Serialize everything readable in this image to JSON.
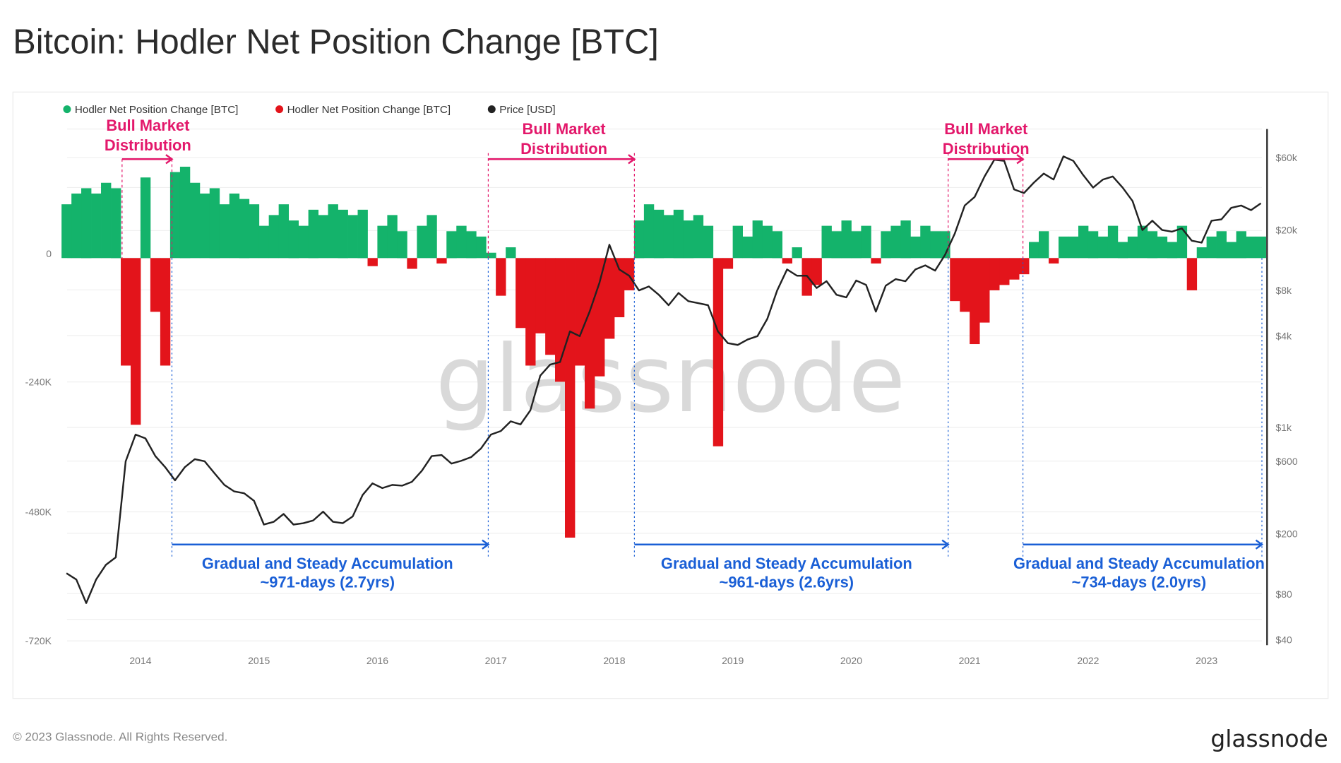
{
  "title": "Bitcoin: Hodler Net Position Change [BTC]",
  "footer": {
    "copyright": "© 2023 Glassnode. All Rights Reserved.",
    "logo": "glassnode"
  },
  "watermark": "glassnode",
  "colors": {
    "positive": "#14b36b",
    "negative": "#e3141b",
    "price": "#222222",
    "distribution": "#e3186b",
    "accumulation": "#1a5fd6"
  },
  "annotations": {
    "distribution": [
      {
        "line1": "Bull Market",
        "line2": "Distribution"
      },
      {
        "line1": "Bull Market",
        "line2": "Distribution"
      },
      {
        "line1": "Bull Market",
        "line2": "Distribution"
      }
    ],
    "accumulation": [
      {
        "line1": "Gradual and Steady Accumulation",
        "line2": "~971-days (2.7yrs)"
      },
      {
        "line1": "Gradual and Steady Accumulation",
        "line2": "~961-days (2.6yrs)"
      },
      {
        "line1": "Gradual and Steady Accumulation",
        "line2": "~734-days (2.0yrs)"
      }
    ]
  },
  "chart_data": {
    "type": "bar",
    "title": "Bitcoin: Hodler Net Position Change [BTC]",
    "legend": [
      "Hodler Net Position Change [BTC]",
      "Hodler Net Position Change [BTC]",
      "Price [USD]"
    ],
    "legend_placement": "top-left",
    "x_start": "2013-05",
    "x_step": "month",
    "x_ticks": [
      "2014",
      "2015",
      "2016",
      "2017",
      "2018",
      "2019",
      "2020",
      "2021",
      "2022",
      "2023"
    ],
    "y_left_ticks": [
      "0",
      "-240K",
      "-480K",
      "-720K"
    ],
    "y_left_range_k": [
      -720,
      240
    ],
    "y_right_ticks": [
      "$60k",
      "$20k",
      "$8k",
      "$4k",
      "$1k",
      "$600",
      "$200",
      "$80",
      "$40"
    ],
    "y_right_scale": "log",
    "y_right_range": [
      40,
      60000
    ],
    "hodler_net_k": [
      100,
      120,
      130,
      120,
      140,
      130,
      -200,
      -310,
      150,
      -100,
      -200,
      160,
      170,
      140,
      120,
      130,
      100,
      120,
      110,
      100,
      60,
      80,
      100,
      70,
      60,
      90,
      80,
      100,
      90,
      80,
      90,
      -15,
      60,
      80,
      50,
      -20,
      60,
      80,
      -10,
      50,
      60,
      50,
      40,
      10,
      -70,
      20,
      -130,
      -200,
      -140,
      -180,
      -230,
      -520,
      -200,
      -280,
      -220,
      -150,
      -110,
      -60,
      70,
      100,
      90,
      80,
      90,
      70,
      80,
      60,
      -350,
      -20,
      60,
      40,
      70,
      60,
      50,
      -10,
      20,
      -70,
      -50,
      60,
      50,
      70,
      50,
      60,
      -10,
      50,
      60,
      70,
      40,
      60,
      50,
      50,
      -80,
      -100,
      -160,
      -120,
      -60,
      -50,
      -40,
      -30,
      30,
      50,
      -10,
      40,
      40,
      60,
      50,
      40,
      60,
      30,
      40,
      60,
      50,
      40,
      30,
      60,
      -60,
      20,
      40,
      50,
      30,
      50,
      40,
      40
    ],
    "price_usd": [
      110,
      100,
      70,
      100,
      125,
      140,
      600,
      900,
      850,
      650,
      550,
      450,
      550,
      620,
      600,
      500,
      420,
      380,
      370,
      330,
      230,
      240,
      270,
      230,
      235,
      245,
      280,
      240,
      235,
      260,
      360,
      430,
      400,
      420,
      415,
      440,
      520,
      650,
      660,
      580,
      605,
      640,
      730,
      900,
      950,
      1100,
      1050,
      1300,
      2200,
      2600,
      2700,
      4300,
      4000,
      5800,
      9000,
      16000,
      11000,
      10000,
      8000,
      8500,
      7500,
      6400,
      7700,
      6800,
      6600,
      6400,
      4300,
      3600,
      3500,
      3800,
      4000,
      5200,
      8000,
      11000,
      10000,
      10000,
      8300,
      9200,
      7500,
      7200,
      9300,
      8700,
      5800,
      8600,
      9500,
      9200,
      11000,
      11700,
      10800,
      13700,
      19000,
      29000,
      33000,
      45000,
      58000,
      57000,
      37000,
      35000,
      41000,
      47000,
      43000,
      61000,
      57000,
      46000,
      38000,
      43000,
      45000,
      38000,
      31000,
      20000,
      23000,
      20000,
      19500,
      20500,
      17000,
      16500,
      23000,
      23500,
      28000,
      29000,
      27000,
      30000
    ]
  }
}
